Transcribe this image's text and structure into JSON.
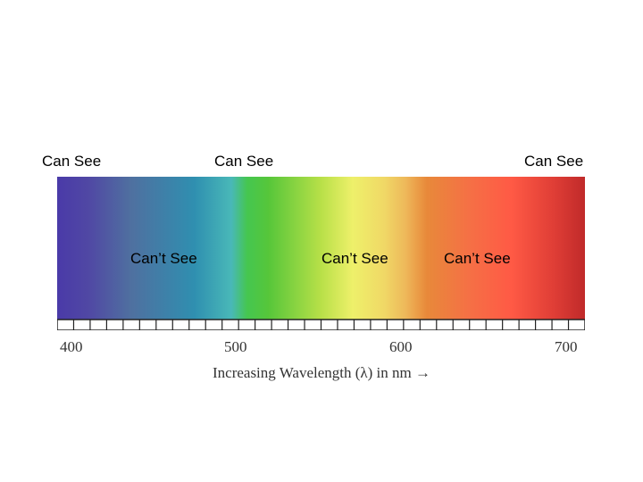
{
  "labels": {
    "can_see_left": "Can See",
    "can_see_middle": "Can See",
    "can_see_right": "Can See",
    "cant_see_1": "Can’t See",
    "cant_see_2": "Can’t See",
    "cant_see_3": "Can’t See"
  },
  "axis": {
    "ticks": [
      "400",
      "500",
      "600",
      "700"
    ],
    "caption": "Increasing Wavelength (λ) in nm →"
  },
  "spectrum": {
    "range_nm": [
      390,
      710
    ],
    "colors": [
      "#4a3aa8",
      "#4f70a0",
      "#2f8fb0",
      "#49b8b8",
      "#4cc23a",
      "#b8e048",
      "#eef06a",
      "#f0cf5f",
      "#e8893a",
      "#ff5a45",
      "#c02a2a"
    ]
  }
}
